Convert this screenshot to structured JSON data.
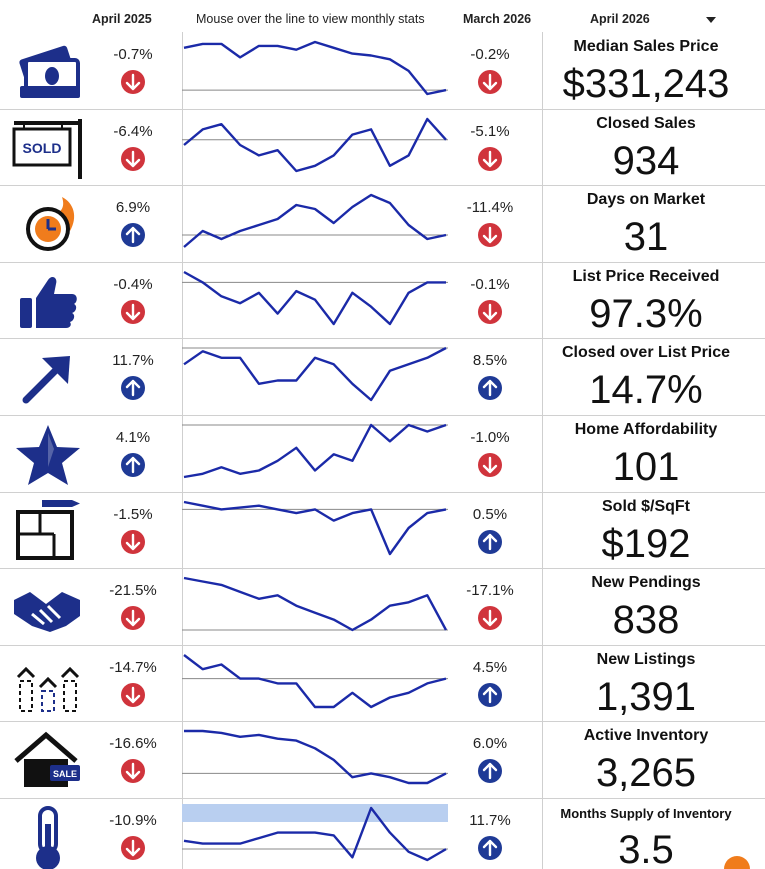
{
  "header": {
    "prev_period": "April 2025",
    "mouseover_hint": "Mouse over the line to view monthly stats",
    "last_month": "March 2026",
    "current_period": "April 2026"
  },
  "colors": {
    "line": "#1b2aa8",
    "down": "#d0343c",
    "up": "#1f3a96",
    "icon": "#1d2f8a"
  },
  "metrics": [
    {
      "icon": "money-icon",
      "name": "Median Sales Price",
      "value": "$331,243",
      "yoy": "-0.7%",
      "yoy_dir": "down",
      "mom": "-0.2%",
      "mom_dir": "down",
      "spark": [
        6,
        4,
        4,
        11,
        5,
        5,
        7,
        3,
        6,
        9,
        10,
        12,
        18,
        30,
        28
      ]
    },
    {
      "icon": "sold-sign-icon",
      "name": "Closed Sales",
      "value": "934",
      "yoy": "-6.4%",
      "yoy_dir": "down",
      "mom": "-5.1%",
      "mom_dir": "down",
      "spark": [
        8,
        5,
        4,
        8,
        10,
        9,
        13,
        12,
        10,
        6,
        5,
        12,
        10,
        3,
        7
      ]
    },
    {
      "icon": "fast-clock-icon",
      "name": "Days on Market",
      "value": "31",
      "yoy": "6.9%",
      "yoy_dir": "up",
      "mom": "-11.4%",
      "mom_dir": "down",
      "spark": [
        24,
        16,
        20,
        16,
        13,
        10,
        3,
        5,
        12,
        4,
        -2,
        2,
        13,
        20,
        18
      ]
    },
    {
      "icon": "thumbs-up-icon",
      "name": "List Price Received",
      "value": "97.3%",
      "yoy": "-0.4%",
      "yoy_dir": "down",
      "mom": "-0.1%",
      "mom_dir": "down",
      "spark": [
        4,
        10,
        18,
        22,
        16,
        28,
        15,
        20,
        34,
        16,
        24,
        34,
        16,
        10,
        10
      ]
    },
    {
      "icon": "arrow-up-right-icon",
      "name": "Closed over List Price",
      "value": "14.7%",
      "yoy": "11.7%",
      "yoy_dir": "up",
      "mom": "8.5%",
      "mom_dir": "up",
      "spark": [
        12,
        4,
        8,
        8,
        24,
        22,
        22,
        8,
        12,
        24,
        34,
        16,
        12,
        8,
        2
      ]
    },
    {
      "icon": "star-icon",
      "name": "Home Affordability",
      "value": "101",
      "yoy": "4.1%",
      "yoy_dir": "up",
      "mom": "-1.0%",
      "mom_dir": "down",
      "spark": [
        46,
        45,
        43,
        45,
        44,
        41,
        37,
        44,
        39,
        41,
        30,
        35,
        30,
        32,
        30
      ]
    },
    {
      "icon": "floor-plan-icon",
      "name": "Sold $/SqFt",
      "value": "$192",
      "yoy": "-1.5%",
      "yoy_dir": "down",
      "mom": "0.5%",
      "mom_dir": "up",
      "spark": [
        6,
        8,
        10,
        9,
        8,
        10,
        12,
        10,
        16,
        12,
        10,
        34,
        20,
        12,
        10
      ]
    },
    {
      "icon": "handshake-icon",
      "name": "New Pendings",
      "value": "838",
      "yoy": "-21.5%",
      "yoy_dir": "down",
      "mom": "-17.1%",
      "mom_dir": "down",
      "spark": [
        10,
        12,
        14,
        18,
        22,
        20,
        26,
        30,
        34,
        40,
        34,
        26,
        24,
        20,
        40
      ]
    },
    {
      "icon": "buildings-icon",
      "name": "New Listings",
      "value": "1,391",
      "yoy": "-14.7%",
      "yoy_dir": "down",
      "mom": "4.5%",
      "mom_dir": "up",
      "spark": [
        12,
        18,
        16,
        22,
        22,
        24,
        24,
        34,
        34,
        28,
        34,
        30,
        28,
        24,
        22
      ]
    },
    {
      "icon": "house-sale-icon",
      "name": "Active Inventory",
      "value": "3,265",
      "yoy": "-16.6%",
      "yoy_dir": "down",
      "mom": "6.0%",
      "mom_dir": "up",
      "spark": [
        4,
        4,
        6,
        10,
        8,
        12,
        14,
        22,
        34,
        52,
        48,
        52,
        58,
        58,
        48
      ]
    },
    {
      "icon": "thermometer-icon",
      "name": "Months Supply of Inventory",
      "value": "3.5",
      "yoy": "-10.9%",
      "yoy_dir": "down",
      "mom": "11.7%",
      "mom_dir": "up",
      "spark": [
        34,
        36,
        36,
        36,
        32,
        28,
        28,
        28,
        30,
        46,
        10,
        28,
        42,
        48,
        40
      ]
    }
  ]
}
